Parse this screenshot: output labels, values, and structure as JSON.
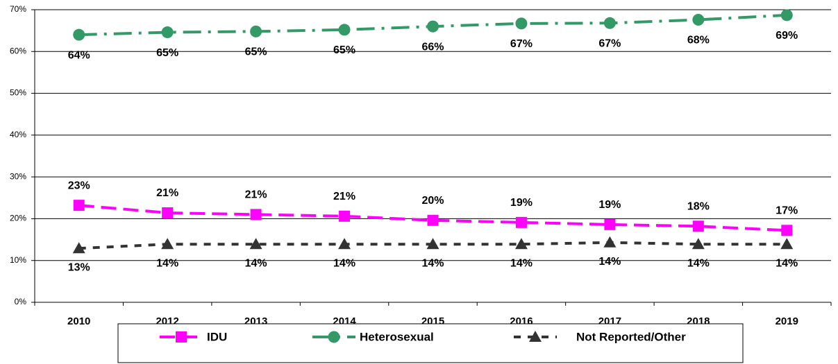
{
  "chart_data": {
    "type": "line",
    "categories": [
      "2010",
      "2012",
      "2013",
      "2014",
      "2015",
      "2016",
      "2017",
      "2018",
      "2019"
    ],
    "series": [
      {
        "name": "IDU",
        "color": "#ff00ff",
        "marker": "square",
        "values": [
          23.2,
          21.4,
          21.0,
          20.6,
          19.6,
          19.1,
          18.6,
          18.2,
          17.2
        ],
        "value_labels": [
          "23%",
          "21%",
          "21%",
          "21%",
          "20%",
          "19%",
          "19%",
          "18%",
          "17%"
        ]
      },
      {
        "name": "Heterosexual",
        "color": "#339966",
        "marker": "circle",
        "values": [
          64.0,
          64.6,
          64.8,
          65.2,
          66.0,
          66.7,
          66.8,
          67.6,
          68.7
        ],
        "value_labels": [
          "64%",
          "65%",
          "65%",
          "65%",
          "66%",
          "67%",
          "67%",
          "68%",
          "69%"
        ]
      },
      {
        "name": "Not Reported/Other",
        "color": "#333333",
        "marker": "triangle",
        "values": [
          12.9,
          13.9,
          13.9,
          13.9,
          13.9,
          13.9,
          14.3,
          13.9,
          13.9
        ],
        "value_labels": [
          "13%",
          "14%",
          "14%",
          "14%",
          "14%",
          "14%",
          "14%",
          "14%",
          "14%"
        ]
      }
    ],
    "ylim": [
      0,
      70
    ],
    "yticks": [
      {
        "value": 0,
        "label": "0%"
      },
      {
        "value": 10,
        "label": "10%"
      },
      {
        "value": 20,
        "label": "20%"
      },
      {
        "value": 30,
        "label": "30%"
      },
      {
        "value": 40,
        "label": "40%"
      },
      {
        "value": 50,
        "label": "50%"
      },
      {
        "value": 60,
        "label": "60%"
      },
      {
        "value": 70,
        "label": "70%"
      }
    ],
    "grid": true,
    "legend": "bottom"
  }
}
